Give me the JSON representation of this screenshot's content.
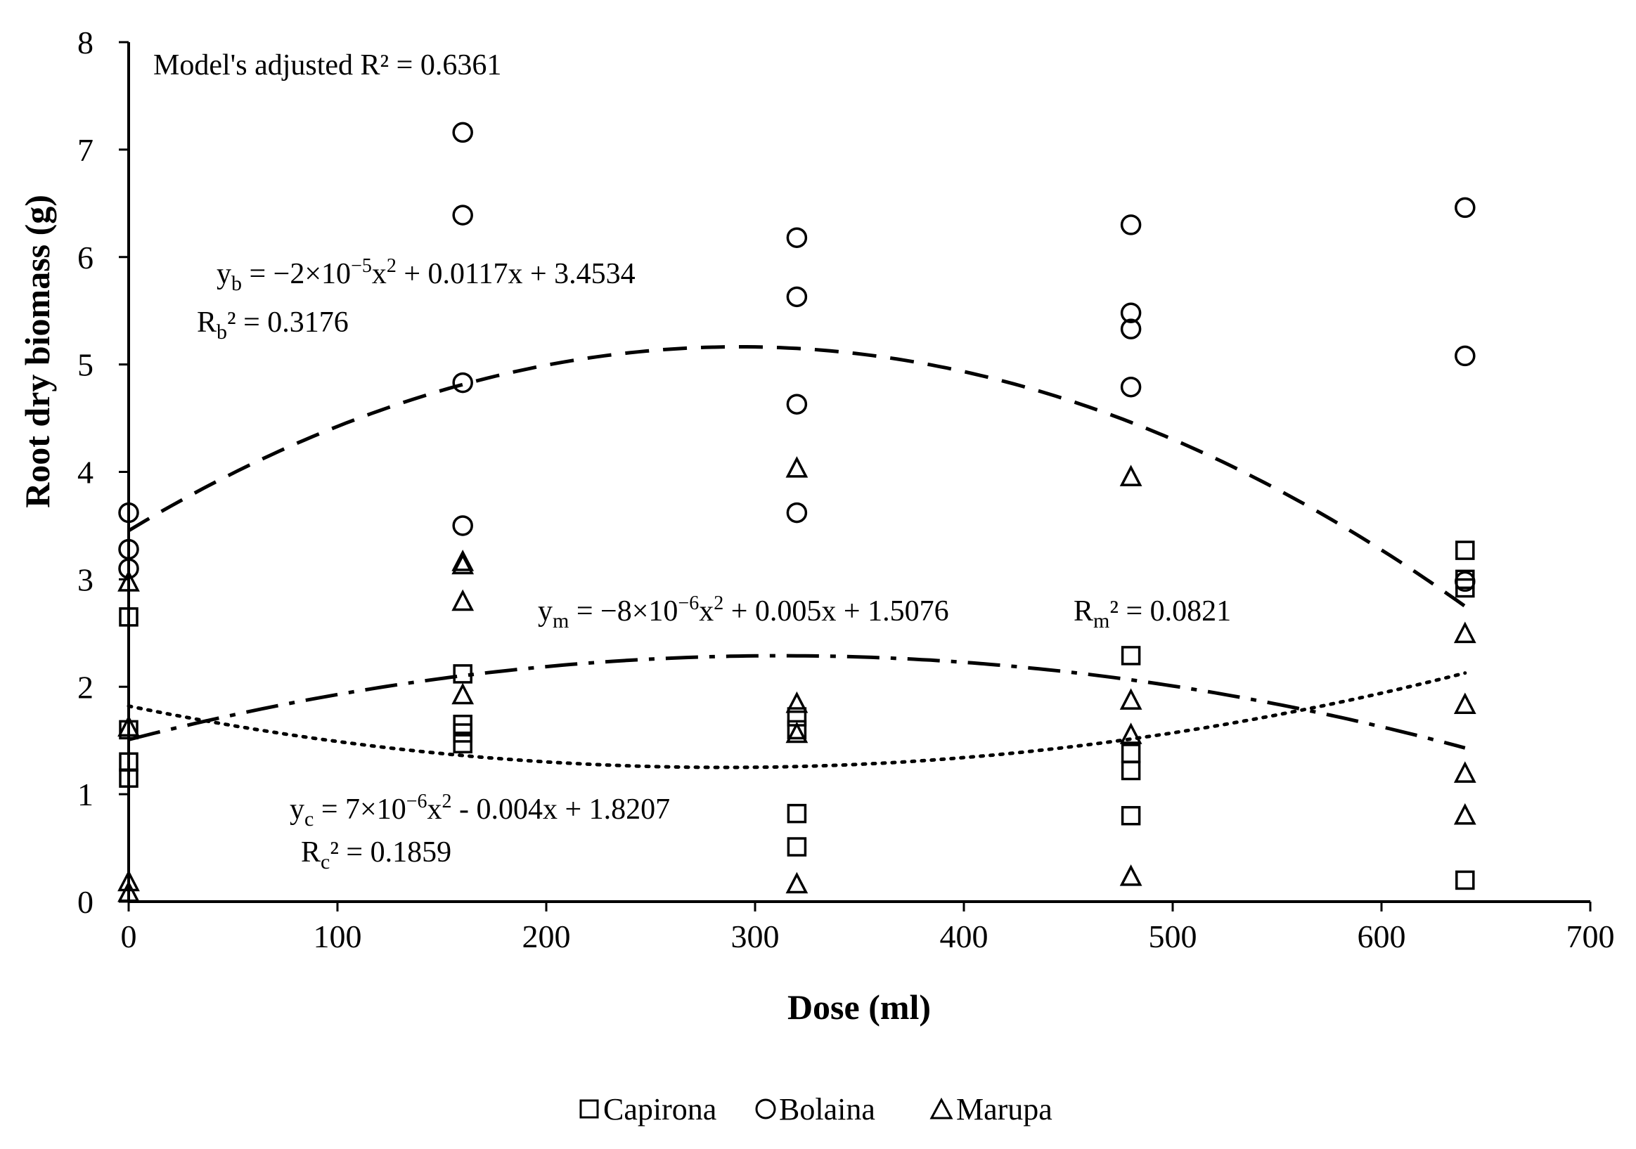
{
  "chart_data": {
    "type": "scatter",
    "title": "",
    "xlabel": "Dose (ml)",
    "ylabel": "Root dry biomass (g)",
    "xlim": [
      0,
      700
    ],
    "ylim": [
      0,
      8
    ],
    "xticks": [
      0,
      100,
      200,
      300,
      400,
      500,
      600,
      700
    ],
    "yticks": [
      0,
      1,
      2,
      3,
      4,
      5,
      6,
      7,
      8
    ],
    "grid": false,
    "legend_position": "bottom-center",
    "series": [
      {
        "name": "Capirona",
        "marker": "square",
        "points": [
          [
            0,
            2.65
          ],
          [
            0,
            1.6
          ],
          [
            0,
            1.3
          ],
          [
            0,
            1.15
          ],
          [
            160,
            2.12
          ],
          [
            160,
            1.65
          ],
          [
            160,
            1.57
          ],
          [
            160,
            1.47
          ],
          [
            320,
            1.72
          ],
          [
            320,
            1.6
          ],
          [
            320,
            0.82
          ],
          [
            320,
            0.51
          ],
          [
            480,
            2.29
          ],
          [
            480,
            1.38
          ],
          [
            480,
            1.22
          ],
          [
            480,
            0.8
          ],
          [
            640,
            3.27
          ],
          [
            640,
            3.0
          ],
          [
            640,
            2.92
          ],
          [
            640,
            0.2
          ]
        ],
        "fit": {
          "a": 7e-06,
          "b": -0.004,
          "c": 1.8207,
          "line": "dotted"
        }
      },
      {
        "name": "Bolaina",
        "marker": "circle",
        "points": [
          [
            0,
            3.62
          ],
          [
            0,
            3.28
          ],
          [
            0,
            3.1
          ],
          [
            160,
            7.16
          ],
          [
            160,
            6.39
          ],
          [
            160,
            4.83
          ],
          [
            160,
            3.5
          ],
          [
            320,
            6.18
          ],
          [
            320,
            5.63
          ],
          [
            320,
            4.63
          ],
          [
            320,
            3.62
          ],
          [
            480,
            6.3
          ],
          [
            480,
            5.48
          ],
          [
            480,
            5.33
          ],
          [
            480,
            4.79
          ],
          [
            640,
            6.46
          ],
          [
            640,
            5.08
          ],
          [
            640,
            2.98
          ]
        ],
        "fit": {
          "a": -2e-05,
          "b": 0.0117,
          "c": 3.4534,
          "line": "dashed"
        }
      },
      {
        "name": "Marupa",
        "marker": "triangle",
        "points": [
          [
            0,
            2.97
          ],
          [
            0,
            1.62
          ],
          [
            0,
            0.18
          ],
          [
            0,
            0.08
          ],
          [
            160,
            3.16
          ],
          [
            160,
            3.13
          ],
          [
            160,
            2.79
          ],
          [
            160,
            1.92
          ],
          [
            320,
            4.03
          ],
          [
            320,
            1.84
          ],
          [
            320,
            1.56
          ],
          [
            320,
            0.16
          ],
          [
            480,
            3.95
          ],
          [
            480,
            1.87
          ],
          [
            480,
            1.55
          ],
          [
            480,
            0.23
          ],
          [
            640,
            2.49
          ],
          [
            640,
            1.83
          ],
          [
            640,
            1.19
          ],
          [
            640,
            0.8
          ]
        ],
        "fit": {
          "a": -8e-06,
          "b": 0.005,
          "c": 1.5076,
          "line": "dash-dot"
        }
      }
    ],
    "annotations": {
      "model_r2": "Model's adjusted R² = 0.6361",
      "eq_b": "yb = −2×10−5x2 + 0.0117x + 3.4534",
      "r2_b": "Rb² = 0.3176",
      "eq_m": "ym = −8×10−6x2 + 0.005x + 1.5076",
      "r2_m": "Rm² = 0.0821",
      "eq_c": "yc = 7×10−6x2 - 0.004x + 1.8207",
      "r2_c": "Rc² = 0.1859"
    }
  }
}
